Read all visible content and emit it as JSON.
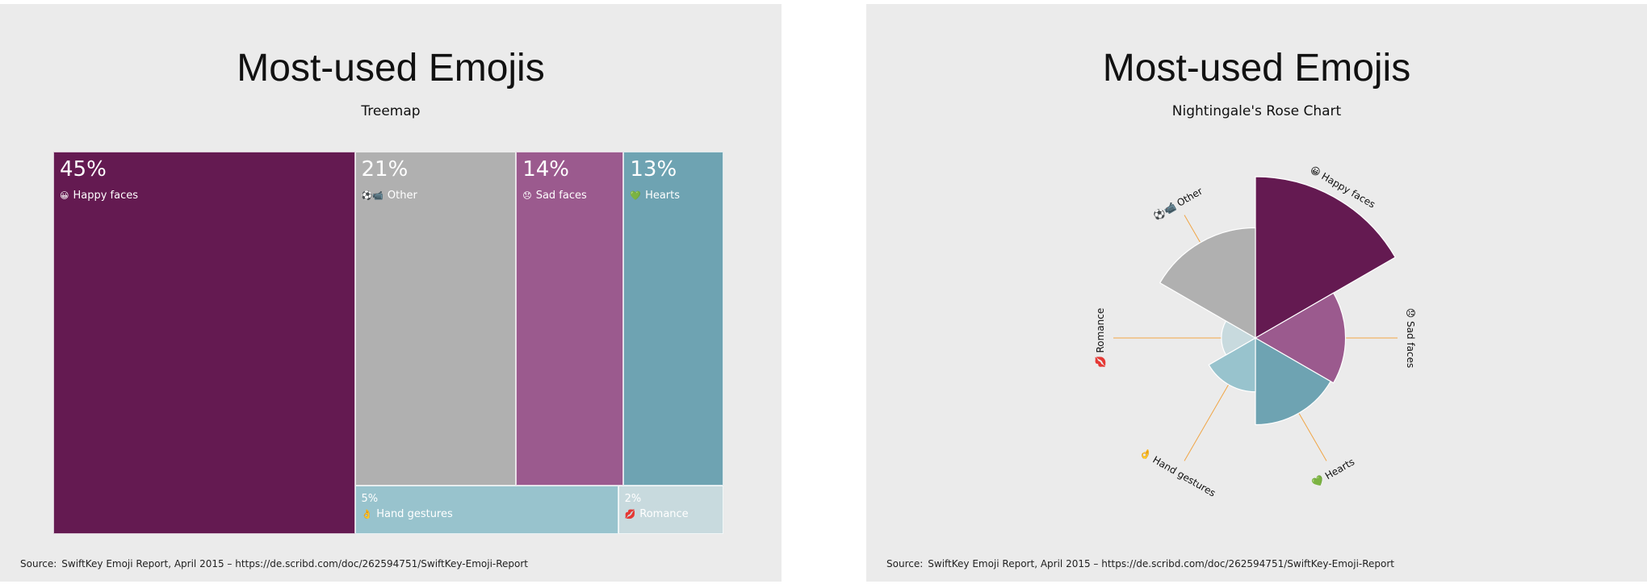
{
  "source_text": "SwiftKey Emoji Report, April 2015 – https://de.scribd.com/doc/262594751/SwiftKey-Emoji-Report",
  "source_label": "Source:",
  "chart_data": [
    {
      "type": "treemap",
      "title": "Most-used Emojis",
      "subtitle": "Treemap",
      "items": [
        {
          "name": "Happy faces",
          "value": 45,
          "pct_label": "45%",
          "color": "#641a51",
          "emoji": "😀",
          "emoji_color": "#f2c12e"
        },
        {
          "name": "Other",
          "value": 21,
          "pct_label": "21%",
          "color": "#b0b0b0",
          "emoji": "⚽📹",
          "emoji_color": "#555555"
        },
        {
          "name": "Sad faces",
          "value": 14,
          "pct_label": "14%",
          "color": "#9b5a8e",
          "emoji": "😞",
          "emoji_color": "#f2c12e"
        },
        {
          "name": "Hearts",
          "value": 13,
          "pct_label": "13%",
          "color": "#6ea3b2",
          "emoji": "💚",
          "emoji_color": "#3fae3f"
        },
        {
          "name": "Hand gestures",
          "value": 5,
          "pct_label": "5%",
          "color": "#98c3cd",
          "emoji": "👌",
          "emoji_color": "#f2c12e"
        },
        {
          "name": "Romance",
          "value": 2,
          "pct_label": "2%",
          "color": "#c8dade",
          "emoji": "💋",
          "emoji_color": "#d8262e"
        }
      ]
    },
    {
      "type": "rose",
      "title": "Most-used Emojis",
      "subtitle": "Nightingale's Rose Chart",
      "items": [
        {
          "name": "Happy faces",
          "value": 45,
          "color": "#641a51",
          "emoji": "😀"
        },
        {
          "name": "Sad faces",
          "value": 14,
          "color": "#9b5a8e",
          "emoji": "😞"
        },
        {
          "name": "Hearts",
          "value": 13,
          "color": "#6ea3b2",
          "emoji": "💚"
        },
        {
          "name": "Hand gestures",
          "value": 5,
          "color": "#98c3cd",
          "emoji": "👌"
        },
        {
          "name": "Romance",
          "value": 2,
          "color": "#c8dade",
          "emoji": "💋"
        },
        {
          "name": "Other",
          "value": 21,
          "color": "#b0b0b0",
          "emoji": "⚽📹"
        }
      ],
      "leader_color": "#f0a545"
    }
  ]
}
